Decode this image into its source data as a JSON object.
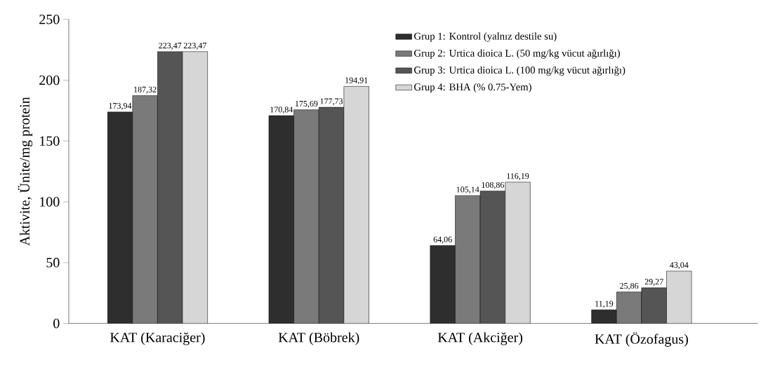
{
  "chart_data": {
    "type": "bar",
    "ylabel": "Aktivite, Ünite/mg protein",
    "categories": [
      "KAT (Karaciğer)",
      "KAT (Böbrek)",
      "KAT (Akciğer)",
      "KAT (Özofagus)"
    ],
    "series": [
      {
        "name": "Grup 1: Kontrol (yalnız destile su)",
        "color": "#2e2e2e",
        "values": [
          173.94,
          170.84,
          64.06,
          11.19
        ],
        "value_labels": [
          "173,94",
          "170,84",
          "64,06",
          "11,19"
        ]
      },
      {
        "name": "Grup 2: Urtica dioica L. (50 mg/kg vücut ağırlığı)",
        "color": "#7a7a7a",
        "values": [
          187.32,
          175.69,
          105.14,
          25.86
        ],
        "value_labels": [
          "187,32",
          "175,69",
          "105,14",
          "25,86"
        ]
      },
      {
        "name": "Grup 3: Urtica dioica L. (100 mg/kg vücut ağırlığı)",
        "color": "#555555",
        "values": [
          223.47,
          177.73,
          108.86,
          29.27
        ],
        "value_labels": [
          "223,47",
          "177,73",
          "108,86",
          "29,27"
        ]
      },
      {
        "name": "Grup 4: BHA (% 0.75-Yem)",
        "color": "#d6d6d6",
        "values": [
          223.47,
          194.91,
          116.19,
          43.04
        ],
        "value_labels": [
          "223,47",
          "194,91",
          "116,19",
          "43,04"
        ]
      }
    ],
    "ylim": [
      0,
      250
    ],
    "yticks": [
      0,
      50,
      100,
      150,
      200,
      250
    ],
    "legend": "top right"
  }
}
